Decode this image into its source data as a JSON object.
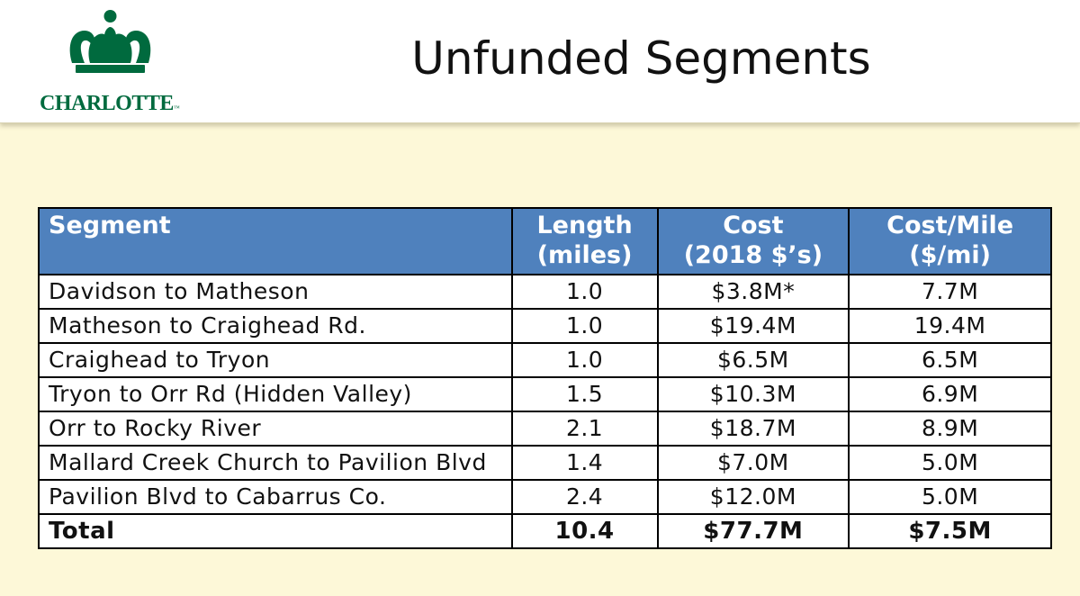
{
  "header": {
    "logo_text": "CHARLOTTE",
    "logo_mark": "™",
    "title": "Unfunded Segments"
  },
  "table": {
    "headers": {
      "segment": "Segment",
      "length_line1": "Length",
      "length_line2": "(miles)",
      "cost_line1": "Cost",
      "cost_line2": "(2018 $’s)",
      "cpm_line1": "Cost/Mile",
      "cpm_line2": "($/mi)"
    },
    "rows": [
      {
        "segment": "Davidson to Matheson",
        "length": "1.0",
        "cost": "$3.8M*",
        "cpm": "7.7M"
      },
      {
        "segment": "Matheson to Craighead Rd.",
        "length": "1.0",
        "cost": "$19.4M",
        "cpm": "19.4M"
      },
      {
        "segment": "Craighead to Tryon",
        "length": "1.0",
        "cost": "$6.5M",
        "cpm": "6.5M"
      },
      {
        "segment": "Tryon to Orr Rd (Hidden Valley)",
        "length": "1.5",
        "cost": "$10.3M",
        "cpm": "6.9M"
      },
      {
        "segment": "Orr to Rocky River",
        "length": "2.1",
        "cost": "$18.7M",
        "cpm": "8.9M"
      },
      {
        "segment": "Mallard Creek Church to Pavilion Blvd",
        "length": "1.4",
        "cost": "$7.0M",
        "cpm": "5.0M"
      },
      {
        "segment": "Pavilion Blvd to Cabarrus Co.",
        "length": "2.4",
        "cost": "$12.0M",
        "cpm": "5.0M"
      }
    ],
    "total": {
      "segment": "Total",
      "length": "10.4",
      "cost": "$77.7M",
      "cpm": "$7.5M"
    }
  },
  "colors": {
    "brand_green": "#006a3e",
    "header_blue": "#4f81bd",
    "background": "#fdf8d8"
  }
}
